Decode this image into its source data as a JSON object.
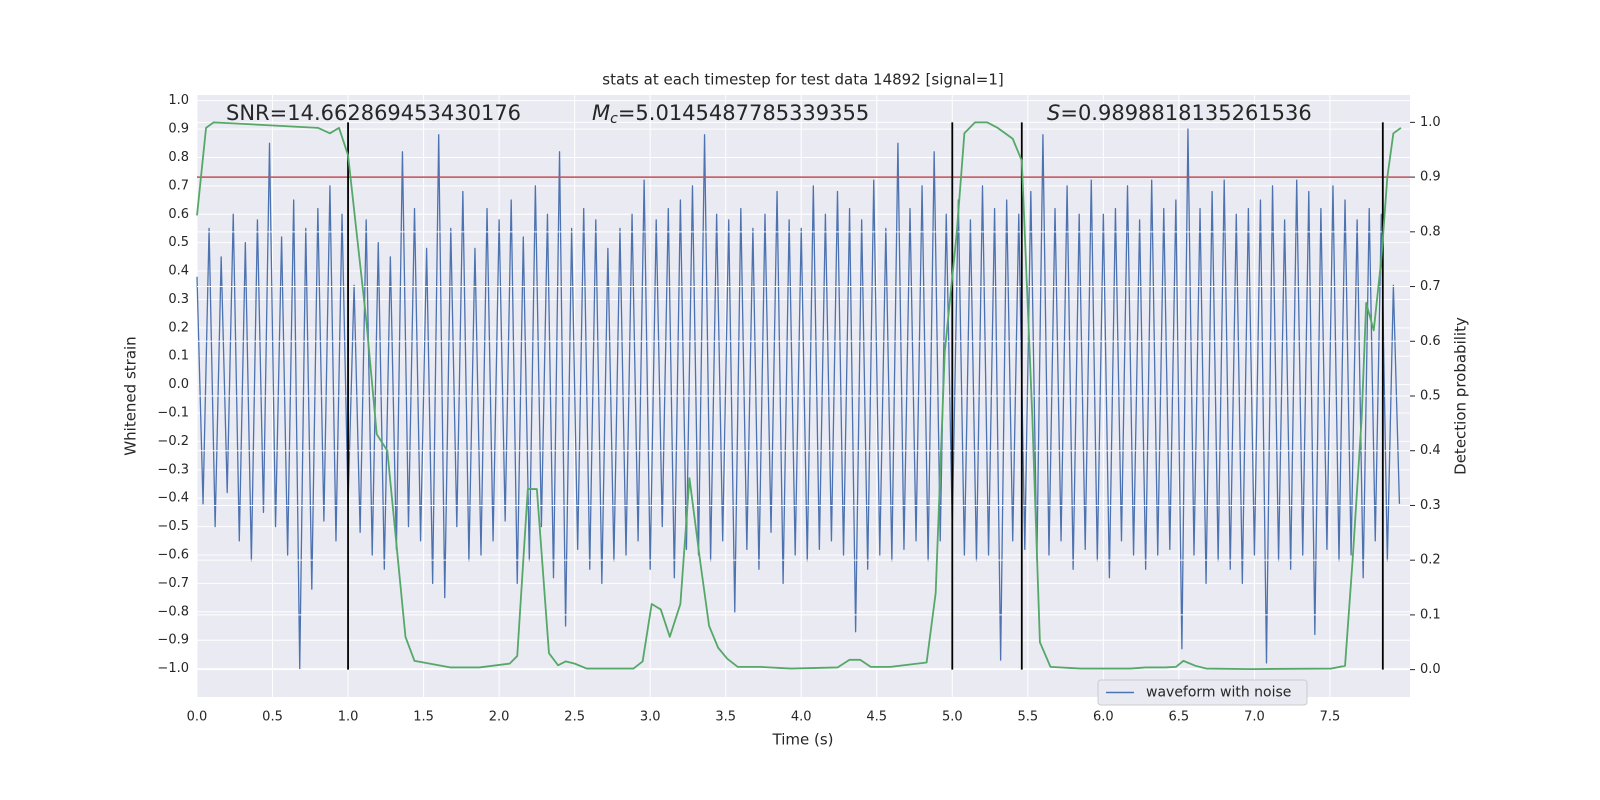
{
  "chart_data": {
    "type": "line",
    "title": "stats at each timestep for test data 14892 [signal=1]",
    "xlabel": "Time (s)",
    "ylabel": "Whitened strain",
    "y2label": "Detection probability",
    "annotations": [
      {
        "text": "SNR=14.662869453430176"
      },
      {
        "symbol": "M",
        "subscript": "c",
        "text": "=5.0145487785339355"
      },
      {
        "symbol": "S",
        "text": "=0.9898818135261536"
      }
    ],
    "xlim": [
      0,
      8.03
    ],
    "ylim": [
      -1.1,
      1.02
    ],
    "y2lim": [
      -0.05,
      1.05
    ],
    "xticks": [
      {
        "value": 0,
        "label": "0.0"
      },
      0.5,
      {
        "value": 1,
        "label": "1.0"
      },
      1.5,
      {
        "value": 2,
        "label": "2.0"
      },
      2.5,
      {
        "value": 3,
        "label": "3.0"
      },
      3.5,
      {
        "value": 4,
        "label": "4.0"
      },
      4.5,
      {
        "value": 5,
        "label": "5.0"
      },
      5.5,
      {
        "value": 6,
        "label": "6.0"
      },
      6.5,
      {
        "value": 7,
        "label": "7.0"
      },
      7.5
    ],
    "yticks": [
      {
        "value": -1,
        "label": "−1.0"
      },
      {
        "value": -0.9,
        "label": "−0.9"
      },
      {
        "value": -0.8,
        "label": "−0.8"
      },
      {
        "value": -0.7,
        "label": "−0.7"
      },
      {
        "value": -0.6,
        "label": "−0.6"
      },
      {
        "value": -0.5,
        "label": "−0.5"
      },
      {
        "value": -0.4,
        "label": "−0.4"
      },
      {
        "value": -0.3,
        "label": "−0.3"
      },
      {
        "value": -0.2,
        "label": "−0.2"
      },
      {
        "value": -0.1,
        "label": "−0.1"
      },
      {
        "value": 0,
        "label": "0.0"
      },
      0.1,
      0.2,
      0.3,
      0.4,
      0.5,
      0.6,
      0.7,
      0.8,
      0.9,
      {
        "value": 1,
        "label": "1.0"
      }
    ],
    "y2ticks": [
      {
        "value": 0,
        "label": "0.0"
      },
      0.1,
      0.2,
      0.3,
      0.4,
      0.5,
      0.6,
      0.7,
      0.8,
      0.9,
      {
        "value": 1,
        "label": "1.0"
      }
    ],
    "grid": true,
    "legend": "lower right",
    "series": [
      {
        "name": "waveform with noise",
        "color": "#4c72b0",
        "x": [
          0,
          0.04,
          0.08,
          0.12,
          0.16,
          0.2,
          0.24,
          0.28,
          0.32,
          0.36,
          0.4,
          0.44,
          0.48,
          0.52,
          0.56,
          0.6,
          0.64,
          0.68,
          0.72,
          0.76,
          0.8,
          0.84,
          0.88,
          0.92,
          0.96,
          1,
          1.04,
          1.08,
          1.12,
          1.16,
          1.2,
          1.24,
          1.28,
          1.32,
          1.36,
          1.4,
          1.44,
          1.48,
          1.52,
          1.56,
          1.6,
          1.64,
          1.68,
          1.72,
          1.76,
          1.8,
          1.84,
          1.88,
          1.92,
          1.96,
          2,
          2.04,
          2.08,
          2.12,
          2.16,
          2.2,
          2.24,
          2.28,
          2.32,
          2.36,
          2.4,
          2.44,
          2.48,
          2.52,
          2.56,
          2.6,
          2.64,
          2.68,
          2.72,
          2.76,
          2.8,
          2.84,
          2.88,
          2.92,
          2.96,
          3,
          3.04,
          3.08,
          3.12,
          3.16,
          3.2,
          3.24,
          3.28,
          3.32,
          3.36,
          3.4,
          3.44,
          3.48,
          3.52,
          3.56,
          3.6,
          3.64,
          3.68,
          3.72,
          3.76,
          3.8,
          3.84,
          3.88,
          3.92,
          3.96,
          4,
          4.04,
          4.08,
          4.12,
          4.16,
          4.2,
          4.24,
          4.28,
          4.32,
          4.36,
          4.4,
          4.44,
          4.48,
          4.52,
          4.56,
          4.6,
          4.64,
          4.68,
          4.72,
          4.76,
          4.8,
          4.84,
          4.88,
          4.92,
          4.96,
          5,
          5.04,
          5.08,
          5.12,
          5.16,
          5.2,
          5.24,
          5.28,
          5.32,
          5.36,
          5.4,
          5.44,
          5.48,
          5.52,
          5.56,
          5.6,
          5.64,
          5.68,
          5.72,
          5.76,
          5.8,
          5.84,
          5.88,
          5.92,
          5.96,
          6,
          6.04,
          6.08,
          6.12,
          6.16,
          6.2,
          6.24,
          6.28,
          6.32,
          6.36,
          6.4,
          6.44,
          6.48,
          6.52,
          6.56,
          6.6,
          6.64,
          6.68,
          6.72,
          6.76,
          6.8,
          6.84,
          6.88,
          6.92,
          6.96,
          7,
          7.04,
          7.08,
          7.12,
          7.16,
          7.2,
          7.24,
          7.28,
          7.32,
          7.36,
          7.4,
          7.44,
          7.48,
          7.52,
          7.56,
          7.6,
          7.64,
          7.68,
          7.72,
          7.76,
          7.8,
          7.84,
          7.88,
          7.92,
          7.96
        ],
        "values": [
          0.38,
          -0.42,
          0.55,
          -0.5,
          0.45,
          -0.38,
          0.6,
          -0.55,
          0.5,
          -0.62,
          0.58,
          -0.45,
          0.85,
          -0.5,
          0.52,
          -0.6,
          0.65,
          -1.0,
          0.55,
          -0.72,
          0.62,
          -0.48,
          0.7,
          -0.55,
          0.6,
          -0.42,
          0.35,
          -0.52,
          0.58,
          -0.6,
          0.5,
          -0.65,
          0.45,
          -0.58,
          0.82,
          -0.5,
          0.62,
          -0.55,
          0.48,
          -0.7,
          0.88,
          -0.75,
          0.55,
          -0.5,
          0.68,
          -0.62,
          0.48,
          -0.6,
          0.62,
          -0.55,
          0.58,
          -0.48,
          0.65,
          -0.7,
          0.52,
          -0.62,
          0.7,
          -0.5,
          0.6,
          -0.68,
          0.82,
          -0.85,
          0.55,
          -0.58,
          0.62,
          -0.65,
          0.58,
          -0.7,
          0.48,
          -0.62,
          0.55,
          -0.6,
          0.6,
          -0.55,
          0.72,
          -0.65,
          0.58,
          -0.5,
          0.62,
          -0.68,
          0.65,
          -0.58,
          0.7,
          -0.6,
          0.88,
          -0.62,
          0.6,
          -0.55,
          0.58,
          -0.8,
          0.62,
          -0.58,
          0.55,
          -0.65,
          0.6,
          -0.52,
          0.68,
          -0.7,
          0.58,
          -0.6,
          0.55,
          -0.62,
          0.7,
          -0.58,
          0.6,
          -0.55,
          0.68,
          -0.6,
          0.62,
          -0.87,
          0.58,
          -0.65,
          0.72,
          -0.6,
          0.55,
          -0.62,
          0.85,
          -0.58,
          0.62,
          -0.55,
          0.7,
          -0.62,
          0.82,
          -0.55,
          0.6,
          -0.5,
          0.65,
          -0.6,
          0.58,
          -0.62,
          0.7,
          -0.6,
          0.62,
          -0.97,
          0.65,
          -0.55,
          0.6,
          -0.58,
          0.68,
          -0.62,
          0.88,
          -0.6,
          0.62,
          -0.55,
          0.7,
          -0.65,
          0.6,
          -0.58,
          0.72,
          -0.62,
          0.6,
          -0.68,
          0.62,
          -0.55,
          0.7,
          -0.6,
          0.58,
          -0.65,
          0.72,
          -0.6,
          0.62,
          -0.58,
          0.65,
          -0.93,
          0.9,
          -0.6,
          0.62,
          -0.7,
          0.68,
          -0.62,
          0.72,
          -0.65,
          0.6,
          -0.7,
          0.62,
          -0.6,
          0.65,
          -0.98,
          0.7,
          -0.62,
          0.58,
          -0.65,
          0.72,
          -0.6,
          0.68,
          -0.88,
          0.62,
          -0.58,
          0.7,
          -0.62,
          0.65,
          -0.6,
          0.58,
          -0.68,
          0.62,
          -0.55,
          0.6,
          -0.62,
          0.35,
          -0.42
        ]
      },
      {
        "color": "#55a868",
        "axis": "y2",
        "x": [
          0,
          0.06,
          0.11,
          0.8,
          0.88,
          0.94,
          1.0,
          1.12,
          1.19,
          1.26,
          1.38,
          1.44,
          1.5,
          1.68,
          1.87,
          2.07,
          2.12,
          2.19,
          2.25,
          2.33,
          2.39,
          2.44,
          2.5,
          2.58,
          2.89,
          2.95,
          3.01,
          3.07,
          3.13,
          3.2,
          3.26,
          3.33,
          3.39,
          3.45,
          3.51,
          3.58,
          3.73,
          3.93,
          4.24,
          4.32,
          4.39,
          4.46,
          4.59,
          4.83,
          4.89,
          4.95,
          5.03,
          5.08,
          5.15,
          5.23,
          5.3,
          5.4,
          5.46,
          5.53,
          5.58,
          5.65,
          5.85,
          6.18,
          6.28,
          6.41,
          6.48,
          6.53,
          6.61,
          6.68,
          6.98,
          7.51,
          7.6,
          7.65,
          7.71,
          7.74,
          7.79,
          7.84,
          7.88,
          7.92,
          7.97
        ],
        "values": [
          0.83,
          0.99,
          1.0,
          0.99,
          0.98,
          0.99,
          0.94,
          0.64,
          0.43,
          0.4,
          0.06,
          0.016,
          0.013,
          0.004,
          0.004,
          0.011,
          0.025,
          0.33,
          0.33,
          0.03,
          0.008,
          0.015,
          0.011,
          0.002,
          0.002,
          0.015,
          0.12,
          0.11,
          0.06,
          0.12,
          0.35,
          0.2,
          0.08,
          0.04,
          0.02,
          0.005,
          0.005,
          0.002,
          0.004,
          0.018,
          0.018,
          0.005,
          0.005,
          0.013,
          0.14,
          0.58,
          0.8,
          0.98,
          1.0,
          1.0,
          0.99,
          0.97,
          0.93,
          0.46,
          0.05,
          0.005,
          0.002,
          0.002,
          0.004,
          0.004,
          0.005,
          0.016,
          0.007,
          0.002,
          0.001,
          0.002,
          0.007,
          0.2,
          0.46,
          0.67,
          0.62,
          0.75,
          0.9,
          0.98,
          0.99
        ]
      }
    ],
    "hlines": [
      {
        "value": 0.9,
        "axis": "y2",
        "color": "#c44e52"
      }
    ],
    "vlines": [
      1.0,
      5.0,
      5.46,
      7.85
    ],
    "vline_color": "#000000"
  }
}
